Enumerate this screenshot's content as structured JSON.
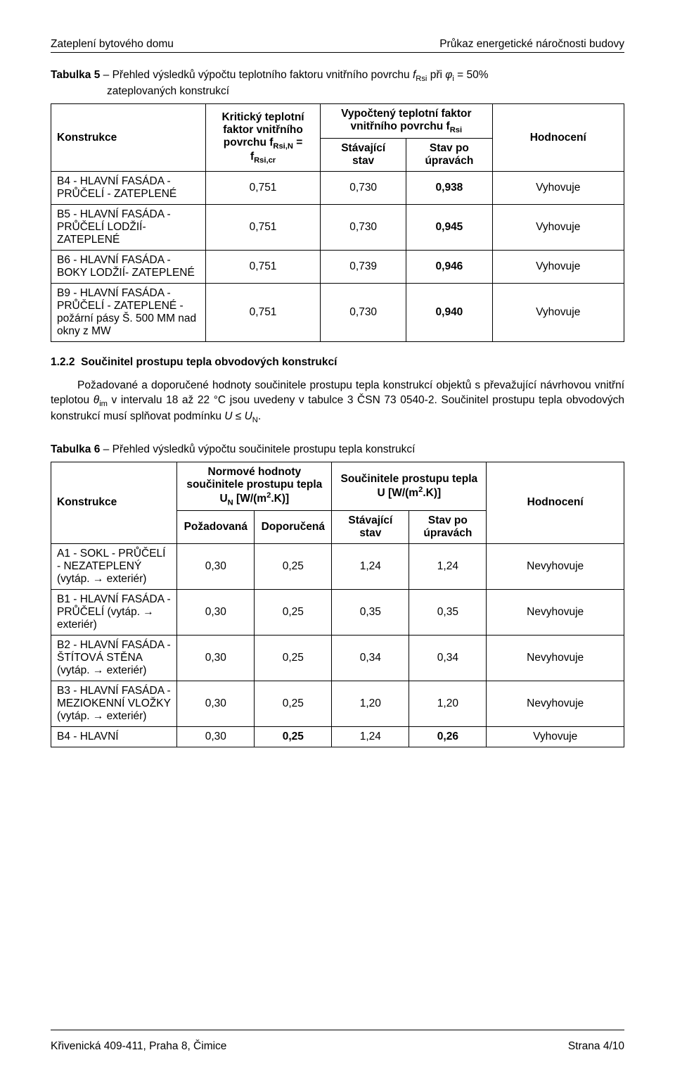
{
  "header": {
    "left": "Zateplení bytového domu",
    "right": "Průkaz energetické náročnosti budovy"
  },
  "table5": {
    "caption_prefix": "Tabulka 5",
    "caption_rest_1": " – Přehled výsledků výpočtu teplotního faktoru vnitřního povrchu ",
    "f_sym": "f",
    "f_sub": "Rsi",
    "caption_rest_2": " při ",
    "phi": "φ",
    "phi_sub": "i",
    "caption_rest_3": " = 50%",
    "caption_line2": "zateplovaných konstrukcí",
    "head_col1": "Konstrukce",
    "head_col2_1": "Kritický teplotní",
    "head_col2_2": "faktor vnitřního",
    "head_col2_3a": "povrchu f",
    "head_col2_3sub1": "Rsi,N",
    "head_col2_eq": " = f",
    "head_col2_3sub2": "Rsi,cr",
    "head_col34_top_1": "Vypočtený teplotní faktor",
    "head_col34_top_2a": "vnitřního povrchu f",
    "head_col34_top_2sub": "Rsi",
    "head_col3": "Stávající",
    "head_col3b": "stav",
    "head_col4": "Stav po",
    "head_col4b": "úpravách",
    "head_col5": "Hodnocení",
    "rows": [
      {
        "name": "B4 - HLAVNÍ FASÁDA - PRŮČELÍ - ZATEPLENÉ",
        "crit": "0,751",
        "stav": "0,730",
        "upr": "0,938",
        "hod": "Vyhovuje"
      },
      {
        "name": "B5 - HLAVNÍ FASÁDA - PRŮČELÍ LODŽIÍ- ZATEPLENÉ",
        "crit": "0,751",
        "stav": "0,730",
        "upr": "0,945",
        "hod": "Vyhovuje"
      },
      {
        "name": "B6 - HLAVNÍ FASÁDA - BOKY LODŽIÍ- ZATEPLENÉ",
        "crit": "0,751",
        "stav": "0,739",
        "upr": "0,946",
        "hod": "Vyhovuje"
      },
      {
        "name": "B9 - HLAVNÍ FASÁDA - PRŮČELÍ - ZATEPLENÉ  - požární pásy Š. 500 MM nad okny z MW",
        "crit": "0,751",
        "stav": "0,730",
        "upr": "0,940",
        "hod": "Vyhovuje"
      }
    ]
  },
  "section122": {
    "num": "1.2.2",
    "title": "Součinitel prostupu tepla obvodových konstrukcí",
    "para_1": "Požadované a doporučené hodnoty součinitele prostupu tepla konstrukcí objektů s převažující návrhovou vnitřní teplotou ",
    "theta": "θ",
    "theta_sub": "im",
    "para_2": " v intervalu 18 až 22 °C jsou uvedeny v tabulce 3 ČSN 73 0540-2. Součinitel prostupu tepla obvodových konstrukcí musí splňovat podmínku ",
    "U": "U",
    "le": " ≤ ",
    "U2": "U",
    "U2_sub": "N",
    "dot": "."
  },
  "table6": {
    "caption_prefix": "Tabulka 6",
    "caption_rest": " – Přehled výsledků výpočtu součinitele prostupu tepla konstrukcí",
    "head_col1": "Konstrukce",
    "head_col2_top_1": "Normové hodnoty",
    "head_col2_top_2": "součinitele prostupu tepla",
    "head_col2_top_3a": "U",
    "head_col2_top_3sub": "N",
    "head_col2_top_3b": " [W/(m",
    "head_col2_top_3sup": "2",
    "head_col2_top_3c": ".K)]",
    "head_col2a": "Požadovaná",
    "head_col2b": "Doporučená",
    "head_col3_top_1": "Součinitele prostupu tepla",
    "head_col3_top_2a": "U [W/(m",
    "head_col3_top_2sup": "2",
    "head_col3_top_2b": ".K)]",
    "head_col3a_1": "Stávající",
    "head_col3a_2": "stav",
    "head_col3b_1": "Stav po",
    "head_col3b_2": "úpravách",
    "head_col4": "Hodnocení",
    "rows": [
      {
        "name": "A1 - SOKL - PRŮČELÍ - NEZATEPLENÝ (vytáp. → exteriér)",
        "poz": "0,30",
        "dop": "0,25",
        "stav": "1,24",
        "upr": "1,24",
        "hod": "Nevyhovuje"
      },
      {
        "name": "B1 - HLAVNÍ FASÁDA - PRŮČELÍ (vytáp. → exteriér)",
        "poz": "0,30",
        "dop": "0,25",
        "stav": "0,35",
        "upr": "0,35",
        "hod": "Nevyhovuje"
      },
      {
        "name": "B2 - HLAVNÍ FASÁDA - ŠTÍTOVÁ STĚNA (vytáp. → exteriér)",
        "poz": "0,30",
        "dop": "0,25",
        "stav": "0,34",
        "upr": "0,34",
        "hod": "Nevyhovuje"
      },
      {
        "name": "B3 - HLAVNÍ FASÁDA - MEZIOKENNÍ VLOŽKY (vytáp. → exteriér)",
        "poz": "0,30",
        "dop": "0,25",
        "stav": "1,20",
        "upr": "1,20",
        "hod": "Nevyhovuje"
      },
      {
        "name": "B4 - HLAVNÍ",
        "poz": "0,30",
        "dop": "0,25",
        "dop_bold": true,
        "stav": "1,24",
        "upr": "0,26",
        "upr_bold": true,
        "hod": "Vyhovuje"
      }
    ]
  },
  "footer": {
    "left": "Křivenická 409-411, Praha 8, Čimice",
    "right": "Strana 4/10"
  }
}
